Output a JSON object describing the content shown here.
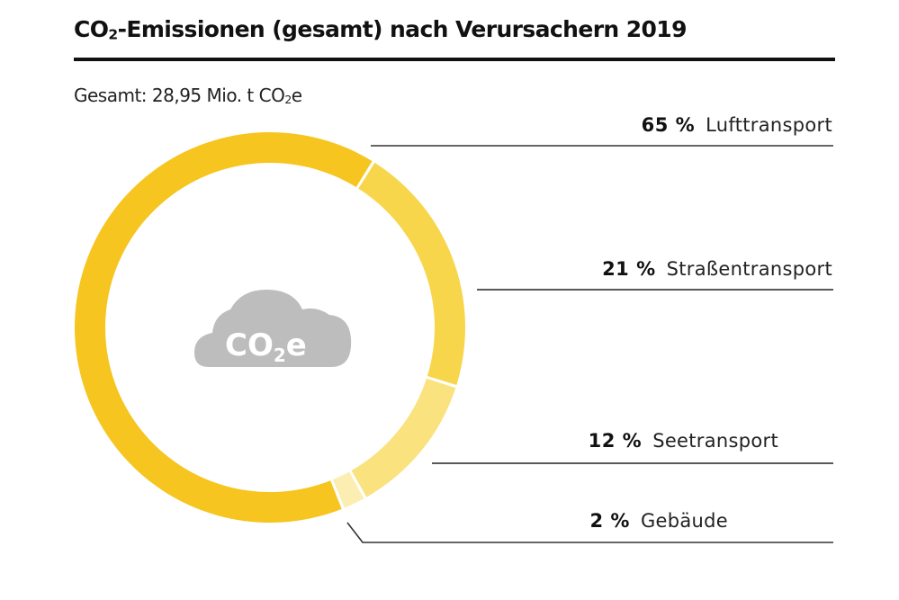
{
  "title": {
    "prefix": "CO",
    "sub": "2",
    "suffix": "-Emissionen (gesamt) nach Verursachern 2019"
  },
  "subtitle": {
    "prefix": "Gesamt: 28,95 Mio. t CO",
    "sub": "2",
    "suffix": "e"
  },
  "center_icon": {
    "name": "co2e-cloud-icon",
    "text_main": "CO",
    "text_sub": "2",
    "text_end": "e",
    "color": "#bdbdbd"
  },
  "chart_data": {
    "type": "pie",
    "variant": "donut",
    "title": "CO2-Emissionen (gesamt) nach Verursachern 2019",
    "subtitle": "Gesamt: 28,95 Mio. t CO2e",
    "unit": "%",
    "total": "28,95 Mio. t CO2e",
    "start_angle_deg": 32,
    "direction": "clockwise",
    "categories": [
      "Lufttransport",
      "Straßentransport",
      "Seetransport",
      "Gebäude"
    ],
    "values": [
      65,
      21,
      12,
      2
    ],
    "labels": [
      "65 %",
      "21 %",
      "12 %",
      "2 %"
    ],
    "colors": [
      "#f6c51f",
      "#f8d64b",
      "#fae37e",
      "#fcedb1"
    ],
    "legend_placement": "right",
    "segment_order_on_ring": [
      "Straßentransport",
      "Seetransport",
      "Gebäude",
      "Lufttransport"
    ]
  }
}
